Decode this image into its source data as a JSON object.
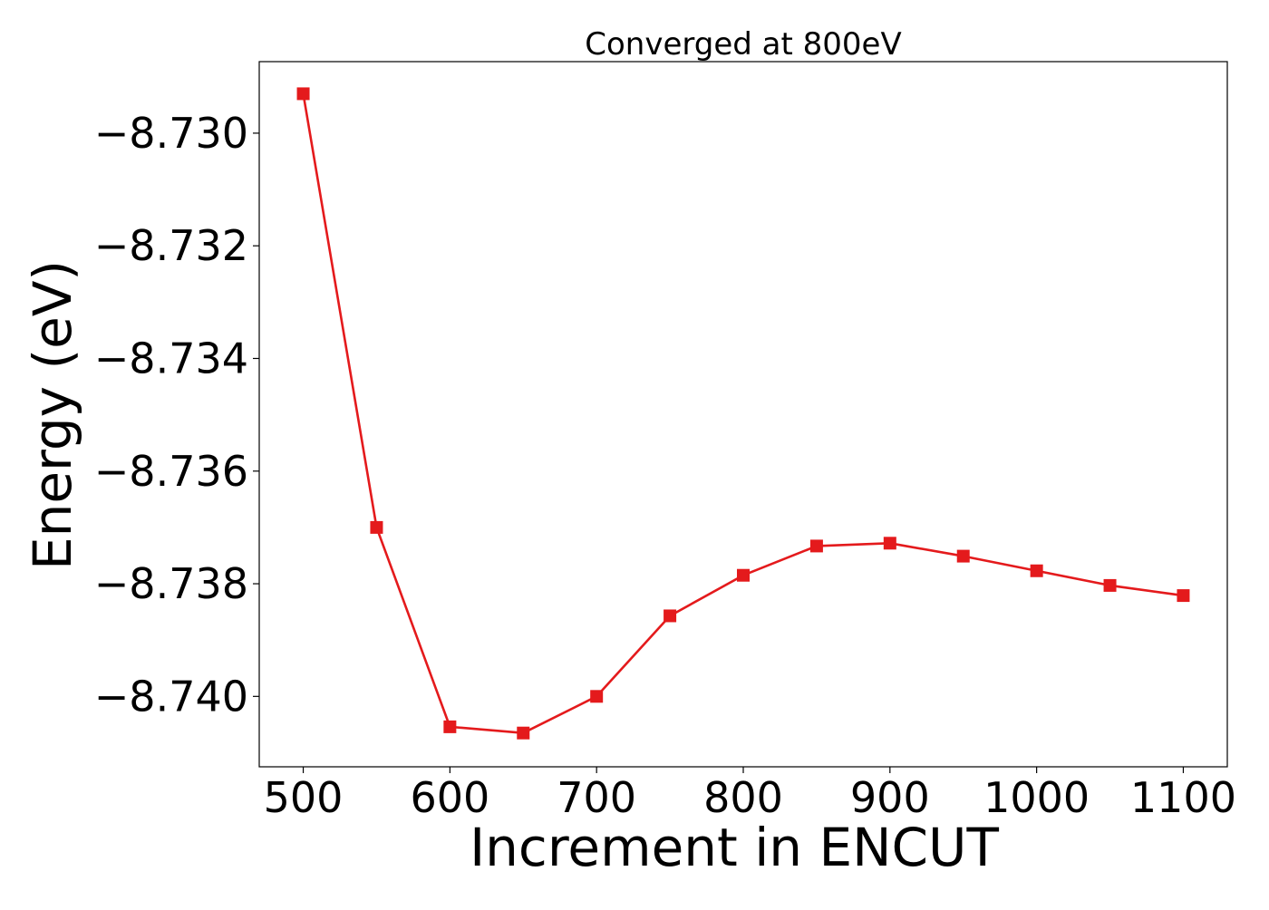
{
  "chart_data": {
    "type": "line",
    "title": "Converged at 800eV",
    "xlabel": "Increment in ENCUT",
    "ylabel": "Energy (eV)",
    "x": [
      500,
      550,
      600,
      650,
      700,
      750,
      800,
      850,
      900,
      950,
      1000,
      1050,
      1100
    ],
    "series": [
      {
        "values": [
          -8.7293,
          -8.737,
          -8.74054,
          -8.74065,
          -8.74,
          -8.73857,
          -8.73785,
          -8.73733,
          -8.73728,
          -8.73751,
          -8.73777,
          -8.73803,
          -8.73821
        ],
        "color": "#e41a1c",
        "marker": "square"
      }
    ],
    "xlim": [
      470,
      1130
    ],
    "ylim": [
      -8.74125,
      -8.72873
    ],
    "xticks": [
      500,
      600,
      700,
      800,
      900,
      1000,
      1100
    ],
    "xtick_labels": [
      "500",
      "600",
      "700",
      "800",
      "900",
      "1000",
      "1100"
    ],
    "yticks": [
      -8.73,
      -8.732,
      -8.734,
      -8.736,
      -8.738,
      -8.74
    ],
    "ytick_labels": [
      "−8.730",
      "−8.732",
      "−8.734",
      "−8.736",
      "−8.738",
      "−8.740"
    ],
    "grid": false,
    "legend": "none"
  }
}
